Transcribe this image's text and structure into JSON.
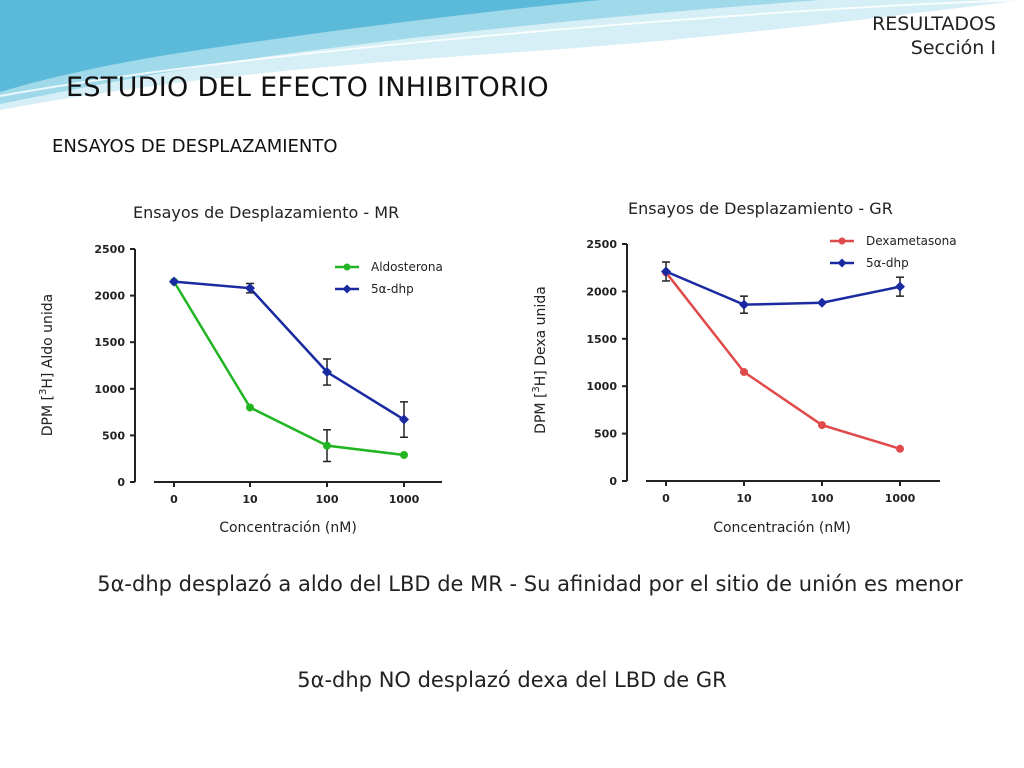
{
  "header": {
    "section_line1": "RESULTADOS",
    "section_line2": "Sección I",
    "title": "ESTUDIO DEL EFECTO INHIBITORIO",
    "subtitle": "ENSAYOS DE DESPLAZAMIENTO"
  },
  "colors": {
    "wave_light": "#cfeaf2",
    "wave_mid": "#8dd1e6",
    "wave_dark": "#3aa7cf",
    "mr_aldo": "#22b522",
    "mr_dhp": "#1a2aa0",
    "gr_dexa": "#e04a4a",
    "gr_dhp": "#1a2aa0"
  },
  "chart_data": [
    {
      "type": "line",
      "title": "Ensayos de Desplazamiento - MR",
      "xlabel": "Concentración (nM)",
      "ylabel_prefix": "DPM [",
      "ylabel_sup": "3",
      "ylabel_suffix": "H] Aldo unida",
      "categories": [
        "0",
        "10",
        "100",
        "1000"
      ],
      "yticks": [
        "0",
        "500",
        "1000",
        "1500",
        "2000",
        "2500"
      ],
      "ylim": [
        0,
        2500
      ],
      "legend_position": "top-right",
      "series": [
        {
          "name": "Aldosterona",
          "color": "#22b522",
          "marker": "circle",
          "values": [
            2150,
            800,
            390,
            290
          ],
          "errors": [
            0,
            0,
            170,
            0
          ]
        },
        {
          "name": "5α-dhp",
          "color": "#1a2aa0",
          "marker": "diamond",
          "values": [
            2150,
            2080,
            1180,
            670
          ],
          "errors": [
            0,
            50,
            140,
            190
          ]
        }
      ]
    },
    {
      "type": "line",
      "title": "Ensayos de Desplazamiento - GR",
      "xlabel": "Concentración (nM)",
      "ylabel_prefix": "DPM [",
      "ylabel_sup": "3",
      "ylabel_suffix": "H] Dexa unida",
      "categories": [
        "0",
        "10",
        "100",
        "1000"
      ],
      "yticks": [
        "0",
        "500",
        "1000",
        "1500",
        "2000",
        "2500"
      ],
      "ylim": [
        0,
        2500
      ],
      "legend_position": "top-right",
      "series": [
        {
          "name": "Dexametasona",
          "color": "#e04a4a",
          "marker": "circle",
          "values": [
            2200,
            1150,
            590,
            340
          ],
          "errors": [
            0,
            0,
            0,
            0
          ]
        },
        {
          "name": "5α-dhp",
          "color": "#1a2aa0",
          "marker": "diamond",
          "values": [
            2210,
            1860,
            1880,
            2050
          ],
          "errors": [
            100,
            90,
            0,
            100
          ]
        }
      ]
    }
  ],
  "conclusions": {
    "line1": "5α-dhp  desplazó a aldo del LBD de MR - Su afinidad por el sitio de unión es menor",
    "line2": "5α-dhp  NO  desplazó dexa del LBD de GR"
  }
}
